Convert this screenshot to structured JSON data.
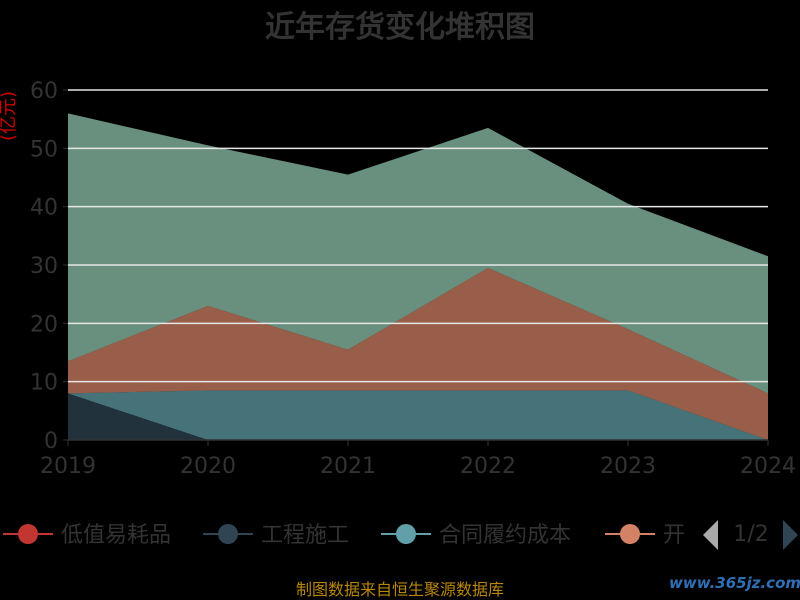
{
  "chart_data": {
    "type": "area",
    "title": "近年存货变化堆积图",
    "ylabel": "(亿元)",
    "categories": [
      "2019",
      "2020",
      "2021",
      "2022",
      "2023",
      "2024"
    ],
    "yticks": [
      "0",
      "10",
      "20",
      "30",
      "40",
      "50",
      "60"
    ],
    "ylim": [
      0,
      60
    ],
    "grid": true,
    "stacked": true,
    "series": [
      {
        "name": "低值易耗品",
        "values": [
          0,
          0,
          0,
          0,
          0,
          0
        ],
        "color": "#c23531"
      },
      {
        "name": "工程施工",
        "values": [
          8,
          0,
          0,
          0,
          0,
          0
        ],
        "color": "#2f4554"
      },
      {
        "name": "合同履约成本",
        "values": [
          0,
          8.5,
          8.5,
          8.5,
          8.5,
          0
        ],
        "color": "#61a0a8"
      },
      {
        "name": "开",
        "values": [
          5.5,
          14.5,
          7,
          21,
          10.5,
          8
        ],
        "color": "#d48265"
      },
      {
        "name": "",
        "values": [
          42.5,
          27.5,
          30,
          24,
          21.5,
          23.5
        ],
        "color": "#91c7ae"
      }
    ],
    "legend_position": "bottom",
    "legend_page": "1/2"
  },
  "footer": "制图数据来自恒生聚源数据库",
  "watermark": "www.365jz.com"
}
